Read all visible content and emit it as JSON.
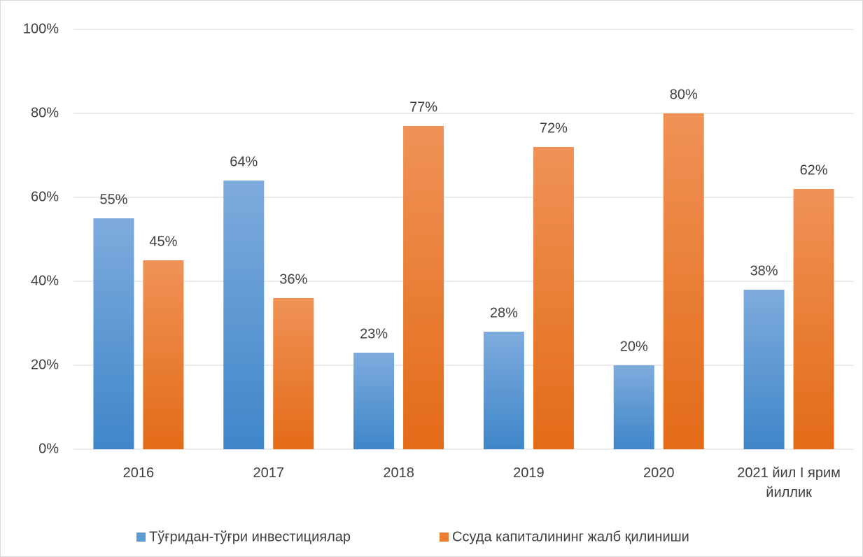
{
  "chart_data": {
    "type": "bar",
    "categories": [
      "2016",
      "2017",
      "2018",
      "2019",
      "2020",
      "2021 йил I ярим йиллик"
    ],
    "series": [
      {
        "name": "Тўғридан-тўғри инвестициялар",
        "color": "#5b9bd5",
        "values": [
          55,
          64,
          23,
          28,
          20,
          38
        ],
        "value_labels": [
          "55%",
          "64%",
          "23%",
          "28%",
          "20%",
          "38%"
        ]
      },
      {
        "name": "Ссуда капиталининг жалб қилиниши",
        "color": "#ed7d31",
        "values": [
          45,
          36,
          77,
          72,
          80,
          62
        ],
        "value_labels": [
          "45%",
          "36%",
          "77%",
          "72%",
          "80%",
          "62%"
        ]
      }
    ],
    "ylim": [
      0,
      100
    ],
    "yticks": [
      {
        "value": 0,
        "label": "0%"
      },
      {
        "value": 20,
        "label": "20%"
      },
      {
        "value": 40,
        "label": "40%"
      },
      {
        "value": 60,
        "label": "60%"
      },
      {
        "value": 80,
        "label": "80%"
      },
      {
        "value": 100,
        "label": "100%"
      }
    ],
    "grid": true,
    "legend": "bottom"
  }
}
